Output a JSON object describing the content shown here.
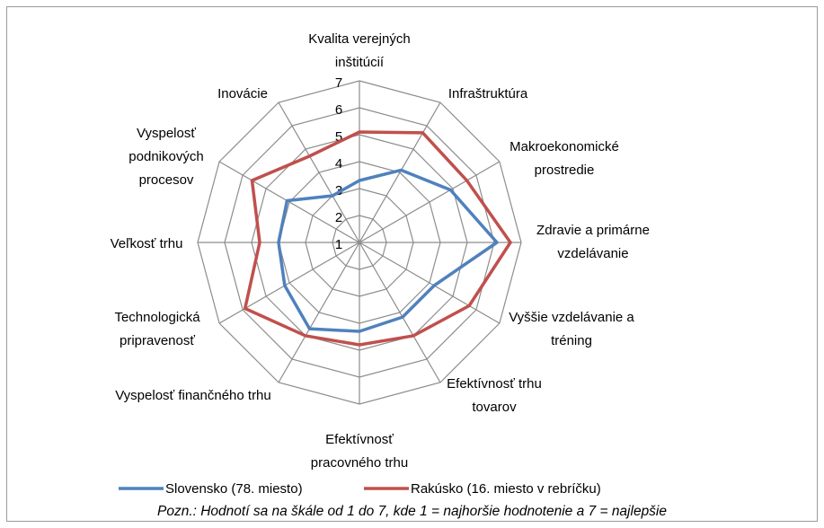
{
  "chart_data": {
    "type": "radar",
    "categories": [
      "Kvalita verejných inštitúcií",
      "Infraštruktúra",
      "Makroekonomické prostredie",
      "Zdravie a primárne vzdelávanie",
      "Vyššie vzdelávanie a tréning",
      "Efektívnosť trhu tovarov",
      "Efektívnosť pracovného trhu",
      "Vyspelosť finančného trhu",
      "Technologická pripravenosť",
      "Veľkosť trhu",
      "Vyspelosť podnikových procesov",
      "Inovácie"
    ],
    "series": [
      {
        "name": "Slovensko (78. miesto)",
        "color": "#4f81bd",
        "values": [
          3.3,
          4.1,
          4.9,
          6.1,
          4.2,
          4.2,
          4.3,
          4.7,
          4.2,
          4.0,
          4.1,
          3.0
        ]
      },
      {
        "name": "Rakúsko (16. miesto v rebríčku)",
        "color": "#c0504d",
        "values": [
          5.1,
          5.7,
          5.6,
          6.6,
          5.7,
          5.0,
          4.8,
          5.0,
          5.9,
          4.7,
          5.6,
          4.7
        ]
      }
    ],
    "rlim": [
      1,
      7
    ],
    "rticks": [
      1,
      2,
      3,
      4,
      5,
      6,
      7
    ],
    "grid": true,
    "note": "Pozn.: Hodnotí sa na škále od 1 do 7, kde 1 = najhoršie hodnotenie a 7 = najlepšie"
  }
}
